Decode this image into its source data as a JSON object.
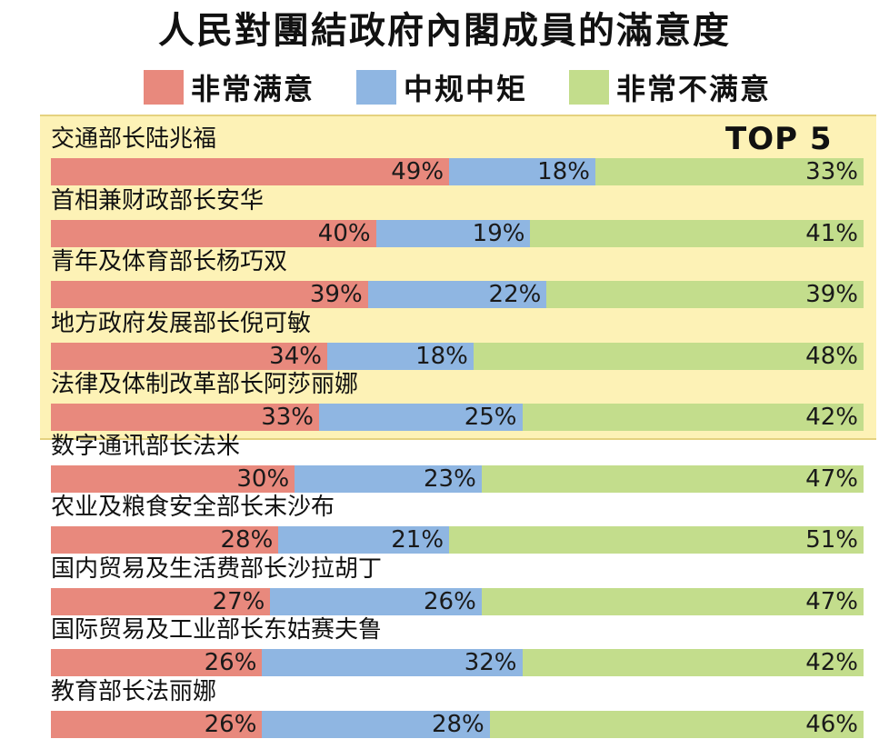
{
  "chart_data": {
    "type": "bar",
    "title": "人民對團結政府內閣成員的滿意度",
    "badge": "TOP 5",
    "series": [
      {
        "name": "非常满意",
        "color": "#e8897d"
      },
      {
        "name": "中规中矩",
        "color": "#8fb6e2"
      },
      {
        "name": "非常不满意",
        "color": "#c3dd8c"
      }
    ],
    "rows": [
      {
        "label": "交通部长陆兆福",
        "values": [
          49,
          18,
          33
        ],
        "texts": [
          "49%",
          "18%",
          "33%"
        ]
      },
      {
        "label": "首相兼财政部长安华",
        "values": [
          40,
          19,
          41
        ],
        "texts": [
          "40%",
          "19%",
          "41%"
        ]
      },
      {
        "label": "青年及体育部长杨巧双",
        "values": [
          39,
          22,
          39
        ],
        "texts": [
          "39%",
          "22%",
          "39%"
        ]
      },
      {
        "label": "地方政府发展部长倪可敏",
        "values": [
          34,
          18,
          48
        ],
        "texts": [
          "34%",
          "18%",
          "48%"
        ]
      },
      {
        "label": "法律及体制改革部长阿莎丽娜",
        "values": [
          33,
          25,
          42
        ],
        "texts": [
          "33%",
          "25%",
          "42%"
        ]
      },
      {
        "label": "数字通讯部长法米",
        "values": [
          30,
          23,
          47
        ],
        "texts": [
          "30%",
          "23%",
          "47%"
        ]
      },
      {
        "label": "农业及粮食安全部长末沙布",
        "values": [
          28,
          21,
          51
        ],
        "texts": [
          "28%",
          "21%",
          "51%"
        ]
      },
      {
        "label": "国内贸易及生活费部长沙拉胡丁",
        "values": [
          27,
          26,
          47
        ],
        "texts": [
          "27%",
          "26%",
          "47%"
        ]
      },
      {
        "label": "国际贸易及工业部长东姑赛夫鲁",
        "values": [
          26,
          32,
          42
        ],
        "texts": [
          "26%",
          "32%",
          "42%"
        ]
      },
      {
        "label": "教育部长法丽娜",
        "values": [
          26,
          28,
          46
        ],
        "texts": [
          "26%",
          "28%",
          "46%"
        ]
      }
    ]
  }
}
